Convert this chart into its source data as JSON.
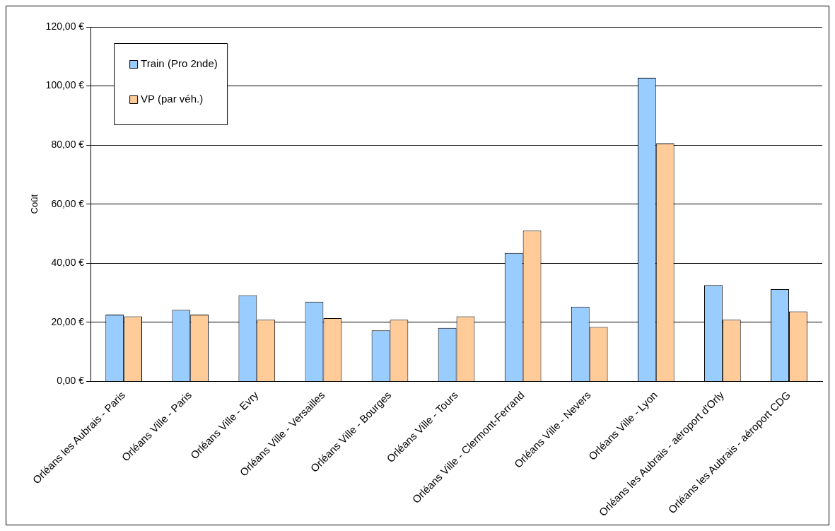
{
  "chart_data": {
    "type": "bar",
    "ylabel": "Coût",
    "categories": [
      "Orléans les Aubrais - Paris",
      "Orléans Ville - Paris",
      "Orléans Ville - Evry",
      "Orléans Ville - Versailles",
      "Orléans Ville - Bourges",
      "Orléans Ville - Tours",
      "Orléans Ville - Clermont-Ferrand",
      "Orléans Ville - Nevers",
      "Orléans Ville - Lyon",
      "Orléans les Aubrais - aéroport d'Orly",
      "Orléans les Aubrais - aéroport CDG"
    ],
    "series": [
      {
        "name": "Train (Pro 2nde)",
        "color": "#99ccff",
        "values": [
          22.6,
          24.2,
          29.2,
          27.0,
          17.3,
          18.1,
          43.5,
          25.3,
          102.8,
          32.6,
          31.2
        ]
      },
      {
        "name": "VP (par véh.)",
        "color": "#ffcc99",
        "values": [
          22.0,
          22.6,
          20.9,
          21.4,
          20.9,
          22.0,
          51.0,
          18.4,
          80.5,
          20.9,
          23.7
        ]
      }
    ],
    "ylim": [
      0,
      120
    ],
    "yticks": [
      {
        "value": 0,
        "label": "0,00 €"
      },
      {
        "value": 20,
        "label": "20,00 €"
      },
      {
        "value": 40,
        "label": "40,00 €"
      },
      {
        "value": 60,
        "label": "60,00 €"
      },
      {
        "value": 80,
        "label": "80,00 €"
      },
      {
        "value": 100,
        "label": "100,00 €"
      },
      {
        "value": 120,
        "label": "120,00 €"
      }
    ],
    "grid": "y",
    "legend": "top left"
  }
}
